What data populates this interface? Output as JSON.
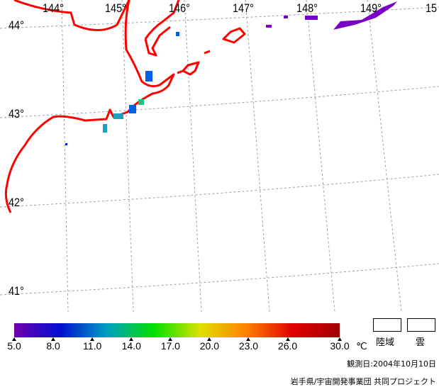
{
  "map": {
    "lon_labels": [
      "144°",
      "145°",
      "146°",
      "147°",
      "148°",
      "149°",
      "15"
    ],
    "lat_labels": [
      "44°",
      "43°",
      "42°",
      "41°"
    ],
    "colors": {
      "coastline": "#ff0000",
      "grid": "#a0a0a0",
      "cloud_pixels": "#7a00c8"
    }
  },
  "legend": {
    "ticks": [
      "5.0",
      "8.0",
      "11.0",
      "14.0",
      "17.0",
      "20.0",
      "23.0",
      "26.0",
      "30.0"
    ],
    "unit": "℃",
    "range": [
      5.0,
      30.0
    ],
    "land_label": "陸域",
    "cloud_label": "雲",
    "gradient": [
      "#7000b0",
      "#0010d0",
      "#00a0c0",
      "#00e000",
      "#e0e000",
      "#ff8000",
      "#e00000",
      "#a00000"
    ]
  },
  "observation_date": "観測日:2004年10月10日",
  "credit": "岩手県/宇宙開発事業団 共同プロジェクト"
}
